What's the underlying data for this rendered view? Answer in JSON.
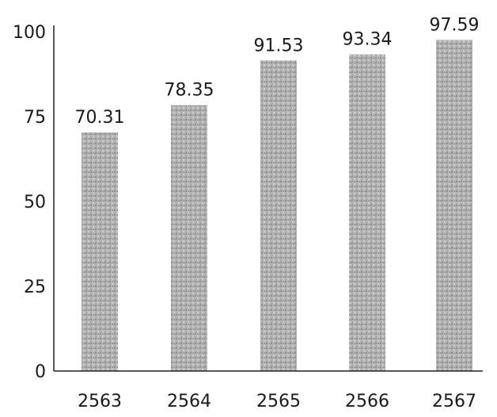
{
  "chart_data": {
    "type": "bar",
    "categories": [
      "2563",
      "2564",
      "2565",
      "2566",
      "2567"
    ],
    "values": [
      70.31,
      78.35,
      91.53,
      93.34,
      97.59
    ],
    "value_labels": [
      "70.31",
      "78.35",
      "91.53",
      "93.34",
      "97.59"
    ],
    "title": "",
    "xlabel": "",
    "ylabel": "",
    "ylim": [
      0,
      100
    ],
    "yticks": [
      "0",
      "25",
      "50",
      "75",
      "100"
    ],
    "grid": false,
    "bar_color": "#a9a9a9"
  }
}
